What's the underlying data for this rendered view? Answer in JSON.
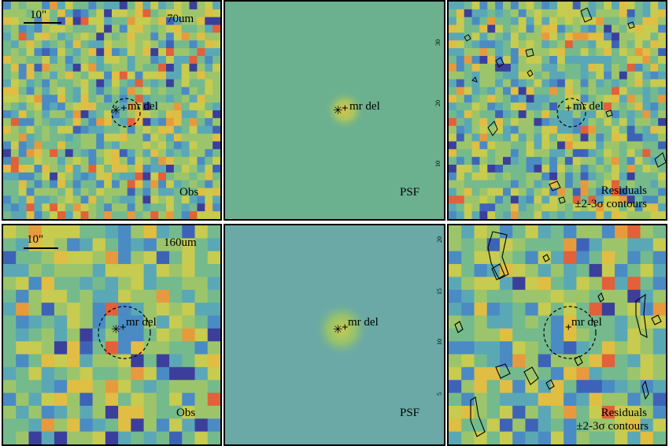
{
  "colors": {
    "frame": "#000000",
    "psf_background": "#6bb08f",
    "psf_background_160": "#6aa9a6",
    "psf_core": "#d6c24a",
    "palette": [
      "#3b3f9b",
      "#3d63b8",
      "#4a8bc4",
      "#5aa8b5",
      "#74ba8d",
      "#9cc56b",
      "#c7cb4f",
      "#e0bd43",
      "#e79a3d",
      "#e2603a"
    ]
  },
  "source_label": "mr del",
  "scalebar_label": "10\"",
  "panels": {
    "obs70": {
      "title": "70um",
      "label": "Obs"
    },
    "psf70": {
      "label": "PSF"
    },
    "res70": {
      "label_line1": "Residuals",
      "label_line2": "±2-3σ contours"
    },
    "obs160": {
      "title": "160um",
      "label": "Obs"
    },
    "psf160": {
      "label": "PSF"
    },
    "res160": {
      "label_line1": "Residuals",
      "label_line2": "±2-3σ contours"
    }
  },
  "ticks": {
    "psf70": [
      "30",
      "20",
      "10"
    ],
    "psf160": [
      "20",
      "15",
      "10",
      "5"
    ]
  },
  "icons": {
    "source_marker": "asterisk-icon",
    "center_marker": "plus-icon",
    "aperture": "dashed-circle-icon"
  }
}
